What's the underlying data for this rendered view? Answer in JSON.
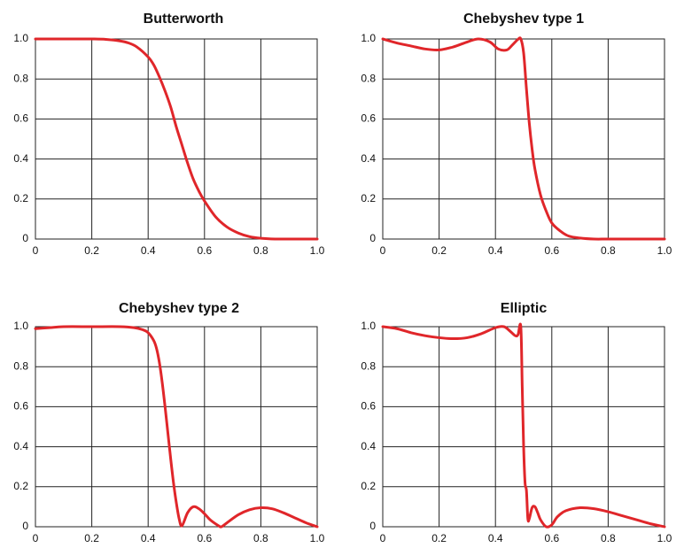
{
  "colors": {
    "curve": "#e0262a",
    "grid": "#222222",
    "text": "#111111"
  },
  "chart_data": [
    {
      "type": "line",
      "title": "Butterworth",
      "xlabel": "",
      "ylabel": "",
      "xlim": [
        0,
        1
      ],
      "ylim": [
        0,
        1
      ],
      "grid": true,
      "x_ticks": [
        "0",
        "0.2",
        "0.4",
        "0.6",
        "0.8",
        "1.0"
      ],
      "y_ticks": [
        "0",
        "0.2",
        "0.4",
        "0.6",
        "0.8",
        "1.0"
      ],
      "series": [
        {
          "name": "Butterworth",
          "x": [
            0,
            0.05,
            0.1,
            0.15,
            0.2,
            0.25,
            0.3,
            0.33,
            0.36,
            0.4,
            0.42,
            0.44,
            0.46,
            0.48,
            0.5,
            0.52,
            0.54,
            0.56,
            0.58,
            0.6,
            0.64,
            0.68,
            0.72,
            0.76,
            0.8,
            0.85,
            0.9,
            0.95,
            1.0
          ],
          "y": [
            1.0,
            1.0,
            1.0,
            1.0,
            1.0,
            0.998,
            0.99,
            0.98,
            0.96,
            0.91,
            0.87,
            0.81,
            0.74,
            0.66,
            0.56,
            0.47,
            0.38,
            0.3,
            0.24,
            0.19,
            0.11,
            0.06,
            0.03,
            0.012,
            0.004,
            0.0,
            0.0,
            0.0,
            0.0
          ]
        }
      ]
    },
    {
      "type": "line",
      "title": "Chebyshev type 1",
      "xlabel": "",
      "ylabel": "",
      "xlim": [
        0,
        1
      ],
      "ylim": [
        0,
        1
      ],
      "grid": true,
      "x_ticks": [
        "0",
        "0.2",
        "0.4",
        "0.6",
        "0.8",
        "1.0"
      ],
      "y_ticks": [
        "0",
        "0.2",
        "0.4",
        "0.6",
        "0.8",
        "1.0"
      ],
      "series": [
        {
          "name": "Chebyshev type 1",
          "x": [
            0,
            0.05,
            0.1,
            0.15,
            0.2,
            0.25,
            0.3,
            0.34,
            0.38,
            0.41,
            0.44,
            0.46,
            0.48,
            0.49,
            0.5,
            0.51,
            0.52,
            0.53,
            0.54,
            0.56,
            0.58,
            0.6,
            0.63,
            0.66,
            0.7,
            0.75,
            0.8,
            0.9,
            1.0
          ],
          "y": [
            1.0,
            0.98,
            0.965,
            0.95,
            0.945,
            0.96,
            0.985,
            1.0,
            0.985,
            0.95,
            0.945,
            0.97,
            0.998,
            1.0,
            0.93,
            0.75,
            0.58,
            0.45,
            0.35,
            0.22,
            0.14,
            0.08,
            0.04,
            0.015,
            0.005,
            0.0,
            0.0,
            0.0,
            0.0
          ]
        }
      ]
    },
    {
      "type": "line",
      "title": "Chebyshev type 2",
      "xlabel": "",
      "ylabel": "",
      "xlim": [
        0,
        1
      ],
      "ylim": [
        0,
        1
      ],
      "grid": true,
      "x_ticks": [
        "0",
        "0.2",
        "0.4",
        "0.6",
        "0.8",
        "1.0"
      ],
      "y_ticks": [
        "0",
        "0.2",
        "0.4",
        "0.6",
        "0.8",
        "1.0"
      ],
      "series": [
        {
          "name": "Chebyshev type 2",
          "x": [
            0,
            0.05,
            0.1,
            0.2,
            0.3,
            0.35,
            0.38,
            0.4,
            0.42,
            0.43,
            0.44,
            0.45,
            0.46,
            0.47,
            0.48,
            0.49,
            0.5,
            0.51,
            0.52,
            0.54,
            0.56,
            0.58,
            0.6,
            0.62,
            0.65,
            0.66,
            0.68,
            0.72,
            0.76,
            0.8,
            0.84,
            0.88,
            0.92,
            0.96,
            1.0
          ],
          "y": [
            0.99,
            0.995,
            1.0,
            1.0,
            1.0,
            0.995,
            0.985,
            0.97,
            0.93,
            0.89,
            0.82,
            0.72,
            0.6,
            0.47,
            0.34,
            0.22,
            0.12,
            0.04,
            0.005,
            0.07,
            0.1,
            0.09,
            0.065,
            0.035,
            0.005,
            0.0,
            0.02,
            0.06,
            0.085,
            0.095,
            0.09,
            0.07,
            0.045,
            0.02,
            0.0
          ]
        }
      ]
    },
    {
      "type": "line",
      "title": "Elliptic",
      "xlabel": "",
      "ylabel": "",
      "xlim": [
        0,
        1
      ],
      "ylim": [
        0,
        1
      ],
      "grid": true,
      "x_ticks": [
        "0",
        "0.2",
        "0.4",
        "0.6",
        "0.8",
        "1.0"
      ],
      "y_ticks": [
        "0",
        "0.2",
        "0.4",
        "0.6",
        "0.8",
        "1.0"
      ],
      "series": [
        {
          "name": "Elliptic",
          "x": [
            0,
            0.05,
            0.1,
            0.15,
            0.2,
            0.25,
            0.3,
            0.35,
            0.4,
            0.43,
            0.45,
            0.47,
            0.48,
            0.49,
            0.495,
            0.5,
            0.505,
            0.51,
            0.515,
            0.52,
            0.53,
            0.54,
            0.55,
            0.56,
            0.58,
            0.6,
            0.62,
            0.65,
            0.7,
            0.75,
            0.8,
            0.85,
            0.9,
            0.95,
            1.0
          ],
          "y": [
            1.0,
            0.99,
            0.97,
            0.955,
            0.945,
            0.94,
            0.945,
            0.965,
            0.995,
            1.0,
            0.98,
            0.955,
            0.96,
            1.0,
            0.7,
            0.4,
            0.22,
            0.18,
            0.04,
            0.04,
            0.095,
            0.1,
            0.07,
            0.035,
            0.0,
            0.01,
            0.05,
            0.08,
            0.095,
            0.09,
            0.075,
            0.055,
            0.035,
            0.015,
            0.0
          ]
        }
      ]
    }
  ]
}
